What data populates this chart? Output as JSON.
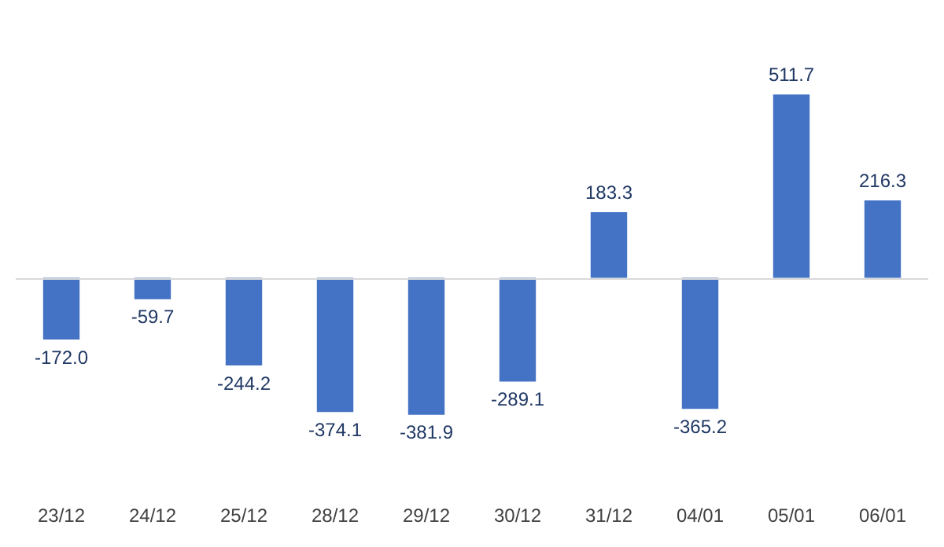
{
  "chart_data": {
    "type": "bar",
    "categories": [
      "23/12",
      "24/12",
      "25/12",
      "28/12",
      "29/12",
      "30/12",
      "31/12",
      "04/01",
      "05/01",
      "06/01"
    ],
    "values": [
      -172.0,
      -59.7,
      -244.2,
      -374.1,
      -381.9,
      -289.1,
      183.3,
      -365.2,
      511.7,
      216.3
    ],
    "value_labels": [
      "-172.0",
      "-59.7",
      "-244.2",
      "-374.1",
      "-381.9",
      "-289.1",
      "183.3",
      "-365.2",
      "511.7",
      "216.3"
    ],
    "color": "#4472c4",
    "grid": false,
    "legend": false,
    "tick_labels": "x"
  }
}
